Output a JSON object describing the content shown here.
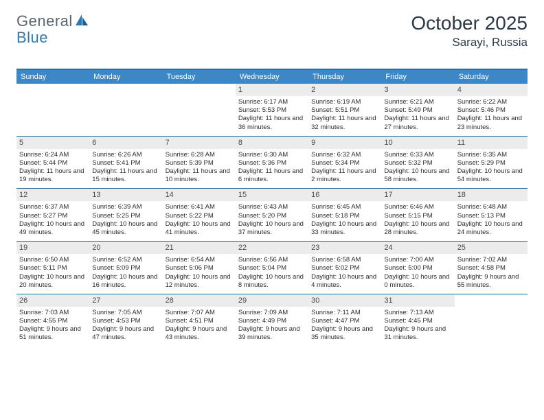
{
  "brand": {
    "general": "General",
    "blue": "Blue"
  },
  "title": "October 2025",
  "location": "Sarayi, Russia",
  "colors": {
    "header_bg": "#3b87c8",
    "header_fg": "#ffffff",
    "border": "#2a6fa3",
    "daynum_bg": "#ececec",
    "text": "#2b2b2b",
    "title": "#2b3a4a",
    "logo_gray": "#5a6570",
    "logo_blue": "#2a7ab9"
  },
  "days": [
    "Sunday",
    "Monday",
    "Tuesday",
    "Wednesday",
    "Thursday",
    "Friday",
    "Saturday"
  ],
  "weeks": [
    [
      {
        "n": "",
        "t": ""
      },
      {
        "n": "",
        "t": ""
      },
      {
        "n": "",
        "t": ""
      },
      {
        "n": "1",
        "t": "Sunrise: 6:17 AM\nSunset: 5:53 PM\nDaylight: 11 hours and 36 minutes."
      },
      {
        "n": "2",
        "t": "Sunrise: 6:19 AM\nSunset: 5:51 PM\nDaylight: 11 hours and 32 minutes."
      },
      {
        "n": "3",
        "t": "Sunrise: 6:21 AM\nSunset: 5:49 PM\nDaylight: 11 hours and 27 minutes."
      },
      {
        "n": "4",
        "t": "Sunrise: 6:22 AM\nSunset: 5:46 PM\nDaylight: 11 hours and 23 minutes."
      }
    ],
    [
      {
        "n": "5",
        "t": "Sunrise: 6:24 AM\nSunset: 5:44 PM\nDaylight: 11 hours and 19 minutes."
      },
      {
        "n": "6",
        "t": "Sunrise: 6:26 AM\nSunset: 5:41 PM\nDaylight: 11 hours and 15 minutes."
      },
      {
        "n": "7",
        "t": "Sunrise: 6:28 AM\nSunset: 5:39 PM\nDaylight: 11 hours and 10 minutes."
      },
      {
        "n": "8",
        "t": "Sunrise: 6:30 AM\nSunset: 5:36 PM\nDaylight: 11 hours and 6 minutes."
      },
      {
        "n": "9",
        "t": "Sunrise: 6:32 AM\nSunset: 5:34 PM\nDaylight: 11 hours and 2 minutes."
      },
      {
        "n": "10",
        "t": "Sunrise: 6:33 AM\nSunset: 5:32 PM\nDaylight: 10 hours and 58 minutes."
      },
      {
        "n": "11",
        "t": "Sunrise: 6:35 AM\nSunset: 5:29 PM\nDaylight: 10 hours and 54 minutes."
      }
    ],
    [
      {
        "n": "12",
        "t": "Sunrise: 6:37 AM\nSunset: 5:27 PM\nDaylight: 10 hours and 49 minutes."
      },
      {
        "n": "13",
        "t": "Sunrise: 6:39 AM\nSunset: 5:25 PM\nDaylight: 10 hours and 45 minutes."
      },
      {
        "n": "14",
        "t": "Sunrise: 6:41 AM\nSunset: 5:22 PM\nDaylight: 10 hours and 41 minutes."
      },
      {
        "n": "15",
        "t": "Sunrise: 6:43 AM\nSunset: 5:20 PM\nDaylight: 10 hours and 37 minutes."
      },
      {
        "n": "16",
        "t": "Sunrise: 6:45 AM\nSunset: 5:18 PM\nDaylight: 10 hours and 33 minutes."
      },
      {
        "n": "17",
        "t": "Sunrise: 6:46 AM\nSunset: 5:15 PM\nDaylight: 10 hours and 28 minutes."
      },
      {
        "n": "18",
        "t": "Sunrise: 6:48 AM\nSunset: 5:13 PM\nDaylight: 10 hours and 24 minutes."
      }
    ],
    [
      {
        "n": "19",
        "t": "Sunrise: 6:50 AM\nSunset: 5:11 PM\nDaylight: 10 hours and 20 minutes."
      },
      {
        "n": "20",
        "t": "Sunrise: 6:52 AM\nSunset: 5:09 PM\nDaylight: 10 hours and 16 minutes."
      },
      {
        "n": "21",
        "t": "Sunrise: 6:54 AM\nSunset: 5:06 PM\nDaylight: 10 hours and 12 minutes."
      },
      {
        "n": "22",
        "t": "Sunrise: 6:56 AM\nSunset: 5:04 PM\nDaylight: 10 hours and 8 minutes."
      },
      {
        "n": "23",
        "t": "Sunrise: 6:58 AM\nSunset: 5:02 PM\nDaylight: 10 hours and 4 minutes."
      },
      {
        "n": "24",
        "t": "Sunrise: 7:00 AM\nSunset: 5:00 PM\nDaylight: 10 hours and 0 minutes."
      },
      {
        "n": "25",
        "t": "Sunrise: 7:02 AM\nSunset: 4:58 PM\nDaylight: 9 hours and 55 minutes."
      }
    ],
    [
      {
        "n": "26",
        "t": "Sunrise: 7:03 AM\nSunset: 4:55 PM\nDaylight: 9 hours and 51 minutes."
      },
      {
        "n": "27",
        "t": "Sunrise: 7:05 AM\nSunset: 4:53 PM\nDaylight: 9 hours and 47 minutes."
      },
      {
        "n": "28",
        "t": "Sunrise: 7:07 AM\nSunset: 4:51 PM\nDaylight: 9 hours and 43 minutes."
      },
      {
        "n": "29",
        "t": "Sunrise: 7:09 AM\nSunset: 4:49 PM\nDaylight: 9 hours and 39 minutes."
      },
      {
        "n": "30",
        "t": "Sunrise: 7:11 AM\nSunset: 4:47 PM\nDaylight: 9 hours and 35 minutes."
      },
      {
        "n": "31",
        "t": "Sunrise: 7:13 AM\nSunset: 4:45 PM\nDaylight: 9 hours and 31 minutes."
      },
      {
        "n": "",
        "t": ""
      }
    ]
  ]
}
